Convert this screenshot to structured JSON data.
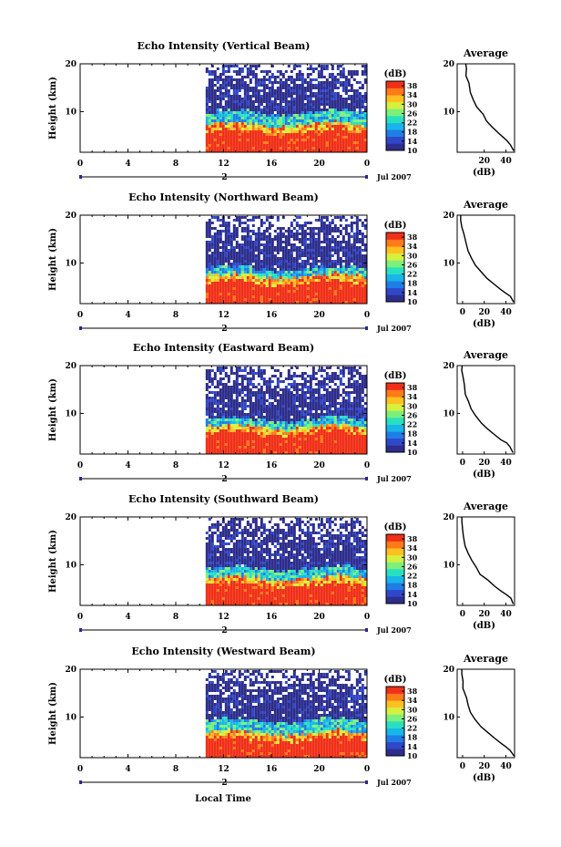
{
  "figure": {
    "xlabel": "Local Time",
    "date_label": "Jul 2007",
    "day_marker": "2",
    "average_title": "Average",
    "colorbar_unit": "(dB)",
    "average_xlabel": "(dB)"
  },
  "colorbar": {
    "ticks": [
      "38",
      "34",
      "30",
      "26",
      "22",
      "18",
      "14",
      "10"
    ],
    "colors": [
      "#2d2d8c",
      "#2f47c8",
      "#1f7ee6",
      "#18b5e8",
      "#28e0c0",
      "#7cf07a",
      "#d6f040",
      "#ffc020",
      "#ff7a18",
      "#f03018"
    ]
  },
  "chart_data": [
    {
      "type": "heatmap",
      "title": "Echo Intensity (Vertical Beam)",
      "ylabel": "Height (km)",
      "x_ticks": [
        "0",
        "4",
        "8",
        "12",
        "16",
        "20",
        "0"
      ],
      "y_ticks": [
        "20",
        "10"
      ],
      "xlim": [
        0,
        24
      ],
      "ylim": [
        1.5,
        20
      ],
      "colorbar_range": [
        10,
        40
      ],
      "data_start_hour": 10.5,
      "layers_top_km": {
        "red": 6.0,
        "yellow": 7.5,
        "cyan": 10.0
      },
      "average_profile": {
        "x_ticks": [
          "20",
          "40"
        ],
        "y_ticks": [
          "20",
          "10"
        ],
        "xlim": [
          -5,
          48
        ],
        "points": [
          [
            47,
            1.8
          ],
          [
            45,
            3
          ],
          [
            42,
            3.8
          ],
          [
            38,
            4.5
          ],
          [
            33,
            5.5
          ],
          [
            28,
            6.8
          ],
          [
            23,
            8
          ],
          [
            18,
            9.5
          ],
          [
            13,
            11
          ],
          [
            10,
            12.5
          ],
          [
            7,
            14
          ],
          [
            5,
            16
          ],
          [
            4,
            17.5
          ],
          [
            3,
            19
          ],
          [
            3,
            20
          ]
        ]
      }
    },
    {
      "type": "heatmap",
      "title": "Echo Intensity (Northward Beam)",
      "ylabel": "Height (km)",
      "x_ticks": [
        "0",
        "4",
        "8",
        "12",
        "16",
        "20",
        "0"
      ],
      "y_ticks": [
        "20",
        "10"
      ],
      "xlim": [
        0,
        24
      ],
      "ylim": [
        1.5,
        20
      ],
      "colorbar_range": [
        10,
        40
      ],
      "data_start_hour": 10.5,
      "layers_top_km": {
        "red": 6.0,
        "yellow": 7.5,
        "cyan": 9.0
      },
      "average_profile": {
        "x_ticks": [
          "0",
          "20",
          "40"
        ],
        "y_ticks": [
          "20",
          "10"
        ],
        "xlim": [
          -5,
          48
        ],
        "points": [
          [
            47,
            1.8
          ],
          [
            44,
            3
          ],
          [
            40,
            3.8
          ],
          [
            35,
            4.5
          ],
          [
            29,
            5.5
          ],
          [
            23,
            6.8
          ],
          [
            17,
            8
          ],
          [
            12,
            9.5
          ],
          [
            8,
            11
          ],
          [
            5,
            12.5
          ],
          [
            3,
            14
          ],
          [
            1,
            16
          ],
          [
            0,
            17.5
          ],
          [
            -1,
            19
          ],
          [
            -1,
            20
          ]
        ]
      }
    },
    {
      "type": "heatmap",
      "title": "Echo Intensity (Eastward Beam)",
      "ylabel": "Height (km)",
      "x_ticks": [
        "0",
        "4",
        "8",
        "12",
        "16",
        "20",
        "0"
      ],
      "y_ticks": [
        "20",
        "10"
      ],
      "xlim": [
        0,
        24
      ],
      "ylim": [
        1.5,
        20
      ],
      "colorbar_range": [
        10,
        40
      ],
      "data_start_hour": 10.5,
      "layers_top_km": {
        "red": 6.0,
        "yellow": 7.5,
        "cyan": 9.0
      },
      "average_profile": {
        "x_ticks": [
          "0",
          "20",
          "40"
        ],
        "y_ticks": [
          "20",
          "10"
        ],
        "xlim": [
          -5,
          48
        ],
        "points": [
          [
            47,
            1.8
          ],
          [
            44,
            3
          ],
          [
            40,
            3.8
          ],
          [
            35,
            4.5
          ],
          [
            29,
            5.5
          ],
          [
            23,
            6.8
          ],
          [
            17,
            8
          ],
          [
            12,
            9.5
          ],
          [
            8,
            11
          ],
          [
            5,
            12.5
          ],
          [
            3,
            14
          ],
          [
            1,
            16
          ],
          [
            0,
            17.5
          ],
          [
            -1,
            19
          ],
          [
            -1,
            20
          ]
        ]
      }
    },
    {
      "type": "heatmap",
      "title": "Echo Intensity (Southward Beam)",
      "ylabel": "Height (km)",
      "x_ticks": [
        "0",
        "4",
        "8",
        "12",
        "16",
        "20",
        "0"
      ],
      "y_ticks": [
        "20",
        "10"
      ],
      "xlim": [
        0,
        24
      ],
      "ylim": [
        1.5,
        20
      ],
      "colorbar_range": [
        10,
        40
      ],
      "data_start_hour": 10.5,
      "layers_top_km": {
        "red": 6.0,
        "yellow": 7.5,
        "cyan": 9.5
      },
      "average_profile": {
        "x_ticks": [
          "0",
          "20",
          "40"
        ],
        "y_ticks": [
          "20",
          "10"
        ],
        "xlim": [
          -5,
          48
        ],
        "points": [
          [
            47,
            1.8
          ],
          [
            44,
            3
          ],
          [
            40,
            3.8
          ],
          [
            35,
            4.5
          ],
          [
            29,
            5.5
          ],
          [
            23,
            6.8
          ],
          [
            17,
            8
          ],
          [
            12,
            9.5
          ],
          [
            8,
            11
          ],
          [
            5,
            12.5
          ],
          [
            3,
            14
          ],
          [
            1,
            16
          ],
          [
            0,
            17.5
          ],
          [
            -1,
            19
          ],
          [
            -1,
            20
          ]
        ]
      }
    },
    {
      "type": "heatmap",
      "title": "Echo Intensity (Westward Beam)",
      "ylabel": "Height (km)",
      "x_ticks": [
        "0",
        "4",
        "8",
        "12",
        "16",
        "20",
        "0"
      ],
      "y_ticks": [
        "20",
        "10"
      ],
      "xlim": [
        0,
        24
      ],
      "ylim": [
        1.5,
        20
      ],
      "colorbar_range": [
        10,
        40
      ],
      "data_start_hour": 10.5,
      "layers_top_km": {
        "red": 5.5,
        "yellow": 7.0,
        "cyan": 9.5
      },
      "average_profile": {
        "x_ticks": [
          "0",
          "20",
          "40"
        ],
        "y_ticks": [
          "20",
          "10"
        ],
        "xlim": [
          -5,
          48
        ],
        "points": [
          [
            47,
            1.8
          ],
          [
            44,
            3
          ],
          [
            40,
            3.8
          ],
          [
            35,
            4.5
          ],
          [
            29,
            5.5
          ],
          [
            23,
            6.8
          ],
          [
            17,
            8
          ],
          [
            12,
            9.5
          ],
          [
            8,
            11
          ],
          [
            5,
            12.5
          ],
          [
            3,
            14
          ],
          [
            1,
            16
          ],
          [
            0,
            17.5
          ],
          [
            -1,
            19
          ],
          [
            -1,
            20
          ]
        ]
      }
    }
  ]
}
